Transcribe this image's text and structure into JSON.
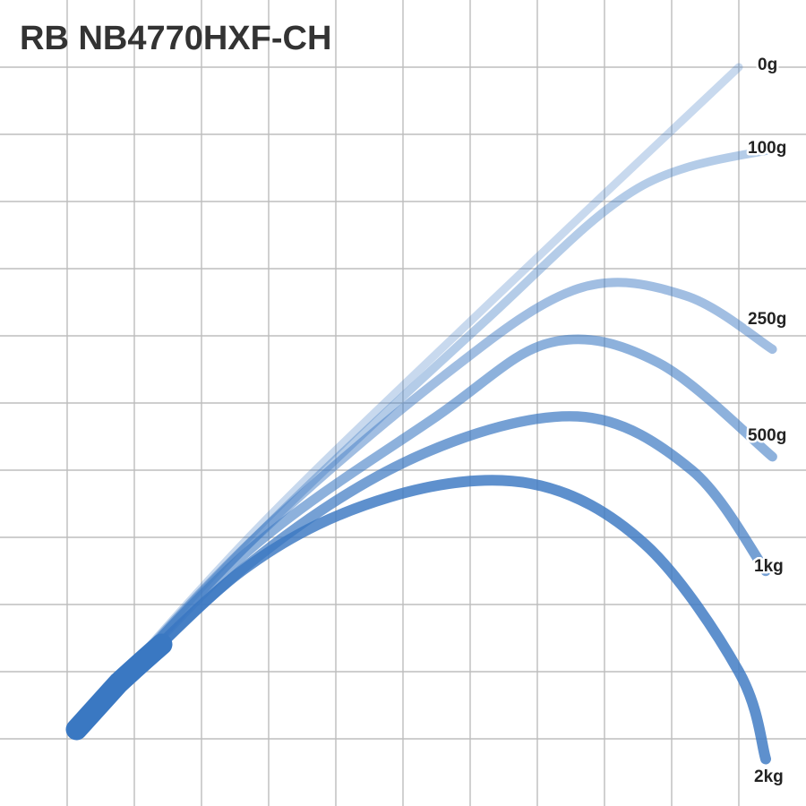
{
  "title": "RB NB4770HXF-CH",
  "chart_data": {
    "type": "line",
    "title": "RB NB4770HXF-CH",
    "xlabel": "",
    "ylabel": "",
    "grid": true,
    "line_color": "#3a78c2",
    "series": [
      {
        "name": "0g",
        "opacity": 0.28,
        "points": [
          [
            1.1,
            1.1
          ],
          [
            3.8,
            4.1
          ],
          [
            7.3,
            7.5
          ],
          [
            11.0,
            11.0
          ]
        ]
      },
      {
        "name": "100g",
        "opacity": 0.38,
        "points": [
          [
            1.1,
            1.1
          ],
          [
            3.8,
            4.0
          ],
          [
            7.2,
            7.2
          ],
          [
            9.5,
            9.2
          ],
          [
            11.6,
            9.8
          ]
        ]
      },
      {
        "name": "250g",
        "opacity": 0.48,
        "points": [
          [
            1.1,
            1.1
          ],
          [
            3.7,
            3.9
          ],
          [
            6.6,
            6.4
          ],
          [
            8.6,
            7.7
          ],
          [
            10.2,
            7.6
          ],
          [
            11.5,
            6.8
          ]
        ]
      },
      {
        "name": "500g",
        "opacity": 0.58,
        "points": [
          [
            1.1,
            1.1
          ],
          [
            3.7,
            3.8
          ],
          [
            6.5,
            5.8
          ],
          [
            8.2,
            6.9
          ],
          [
            9.8,
            6.6
          ],
          [
            11.5,
            5.2
          ]
        ]
      },
      {
        "name": "1kg",
        "opacity": 0.7,
        "points": [
          [
            1.1,
            1.1
          ],
          [
            3.7,
            3.6
          ],
          [
            6.2,
            5.2
          ],
          [
            8.6,
            5.8
          ],
          [
            10.3,
            5.0
          ],
          [
            11.4,
            3.5
          ]
        ]
      },
      {
        "name": "2kg",
        "opacity": 0.82,
        "points": [
          [
            1.1,
            1.1
          ],
          [
            3.6,
            3.5
          ],
          [
            5.8,
            4.6
          ],
          [
            7.9,
            4.8
          ],
          [
            9.6,
            3.9
          ],
          [
            11.0,
            2.0
          ],
          [
            11.4,
            0.7
          ]
        ]
      }
    ]
  }
}
